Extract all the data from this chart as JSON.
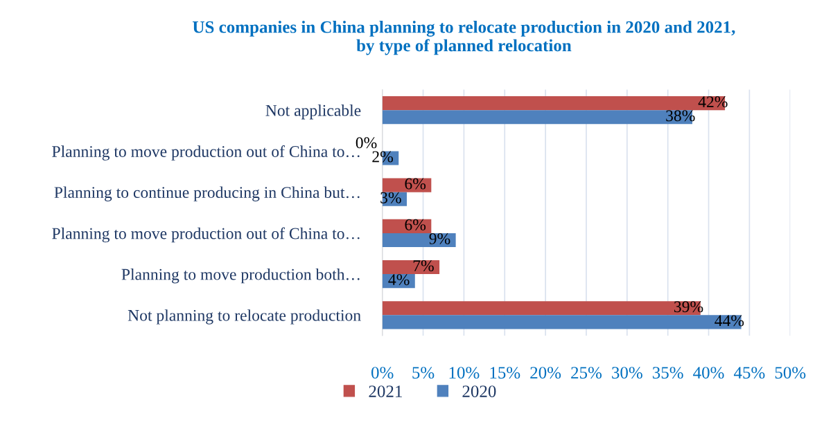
{
  "chart_data": {
    "type": "bar",
    "orientation": "horizontal",
    "title": "US companies in China planning to relocate production in 2020 and 2021,\nby type of planned relocation",
    "categories": [
      "Not applicable",
      "Planning to move production out of China to…",
      "Planning to continue producing in China but…",
      "Planning to move production out of China to…",
      "Planning to move production both…",
      "Not planning to relocate production"
    ],
    "series": [
      {
        "name": "2021",
        "color": "#c0504d",
        "values": [
          42,
          0,
          6,
          6,
          7,
          39
        ],
        "value_labels": [
          "42%",
          "0%",
          "6%",
          "6%",
          "7%",
          "39%"
        ]
      },
      {
        "name": "2020",
        "color": "#4f81bd",
        "values": [
          38,
          2,
          3,
          9,
          4,
          44
        ],
        "value_labels": [
          "38%",
          "2%",
          "3%",
          "9%",
          "4%",
          "44%"
        ]
      }
    ],
    "xlim": [
      0,
      50
    ],
    "xticks": [
      {
        "value": 0,
        "label": "0%"
      },
      {
        "value": 5,
        "label": "5%"
      },
      {
        "value": 10,
        "label": "10%"
      },
      {
        "value": 15,
        "label": "15%"
      },
      {
        "value": 20,
        "label": "20%"
      },
      {
        "value": 25,
        "label": "25%"
      },
      {
        "value": 30,
        "label": "30%"
      },
      {
        "value": 35,
        "label": "35%"
      },
      {
        "value": 40,
        "label": "40%"
      },
      {
        "value": 45,
        "label": "45%"
      },
      {
        "value": 50,
        "label": "50%"
      }
    ],
    "grid": "x",
    "legend": "bottom"
  }
}
